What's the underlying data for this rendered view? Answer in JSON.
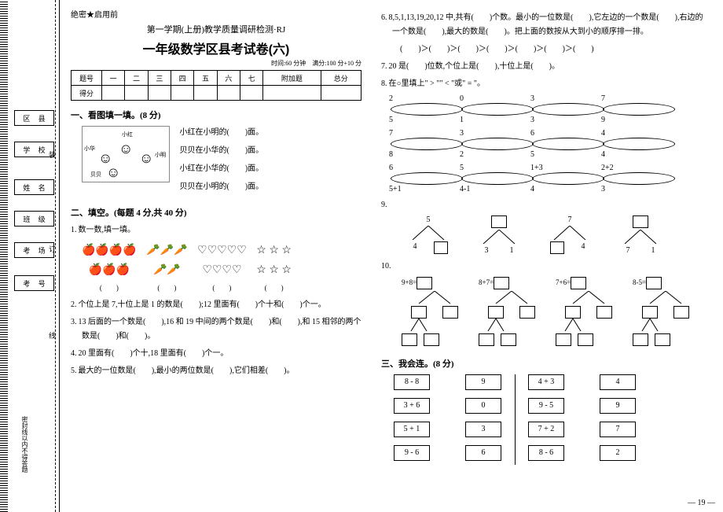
{
  "side": {
    "boxes": [
      "区 县",
      "学 校",
      "姓 名",
      "班 级",
      "考 场",
      "考 号"
    ],
    "marks": [
      "装",
      "订",
      "线"
    ],
    "vertical": "密封线以内不得答题"
  },
  "header": {
    "secret": "绝密★启用前",
    "subtitle": "第一学期(上册)教学质量调研检测·RJ",
    "title": "一年级数学区县考试卷(六)",
    "timing": "时间:60 分钟　满分:100 分+10 分"
  },
  "scoreTable": {
    "row1": [
      "题号",
      "一",
      "二",
      "三",
      "四",
      "五",
      "六",
      "七",
      "附加题",
      "总分"
    ],
    "row2Label": "得分"
  },
  "sec1": {
    "title": "一、看图填一填。(8 分)",
    "names": {
      "xh": "小红",
      "xm": "小明",
      "xhu": "小华",
      "bb": "贝贝"
    },
    "lines": [
      "小红在小明的(　　)面。",
      "贝贝在小华的(　　)面。",
      "小红在小华的(　　)面。",
      "贝贝在小明的(　　)面。"
    ]
  },
  "sec2": {
    "title": "二、填空。(每题 4 分,共 40 分)",
    "q1": "数一数,填一填。",
    "q1blank": "(　　)",
    "q2": "个位上是 7,十位上是 1 的数是(　　);12 里面有(　　)个十和(　　)个一。",
    "q3": "13 后面的一个数是(　　),16 和 19 中间的两个数是(　　)和(　　),和 15 相邻的两个数是(　　)和(　　)。",
    "q4": "20 里面有(　　)个十,18 里面有(　　)个一。",
    "q5": "最大的一位数是(　　),最小的两位数是(　　),它们相差(　　)。",
    "q6a": "8,5,1,13,19,20,12 中,共有(　　)个数。最小的一位数是(　　),它左边的一个数是(　　),右边的一个数是(　　),最大的数是(　　)。把上面的数按从大到小的顺序排一排。",
    "q6b": "(　　)＞(　　)＞(　　)＞(　　)＞(　　)＞(　　)＞(　　)",
    "q7": "20 是(　　)位数,个位上是(　　),十位上是(　　)。",
    "q8": "在○里填上\" > \"\" < \"或\" = \"。",
    "q8rows": [
      [
        "2○5",
        "0○1",
        "3○3",
        "7○9"
      ],
      [
        "7○8",
        "3○2",
        "6○5",
        "4○4"
      ],
      [
        "6○5+1",
        "5○4-1",
        "1+3○4",
        "2+2○3"
      ]
    ],
    "q9tops": [
      "5",
      "",
      "7",
      ""
    ],
    "q9leaves": [
      [
        "4",
        ""
      ],
      [
        "3",
        "1"
      ],
      [
        "",
        "4"
      ],
      [
        "7",
        "1"
      ]
    ],
    "q10eqs": [
      "9+8=",
      "8+7=",
      "7+6=",
      "8-5="
    ]
  },
  "sec3": {
    "title": "三、我会连。(8 分)",
    "colA": [
      "8 - 8",
      "3 + 6",
      "5 + 1",
      "9 - 6"
    ],
    "colB": [
      "9",
      "0",
      "3",
      "6"
    ],
    "colC": [
      "4 + 3",
      "9 - 5",
      "7 + 2",
      "8 - 6"
    ],
    "colD": [
      "4",
      "9",
      "7",
      "2"
    ]
  },
  "pageNum": "— 19 —"
}
